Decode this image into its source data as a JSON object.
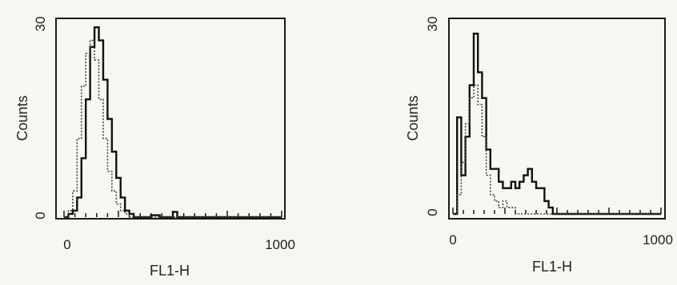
{
  "chart_data": [
    {
      "type": "line",
      "title": "",
      "xlabel": "FL1-H",
      "ylabel": "Counts",
      "xlim": [
        0,
        1000
      ],
      "ylim": [
        0,
        30
      ],
      "x_ticks": [
        "0",
        "1000"
      ],
      "y_ticks": [
        "0",
        "30"
      ],
      "grid": false,
      "series": [
        {
          "style": "solid",
          "color": "#111111",
          "x": [
            0,
            20,
            40,
            60,
            80,
            100,
            120,
            140,
            160,
            180,
            200,
            220,
            240,
            260,
            280,
            300,
            320,
            360,
            400,
            440,
            480,
            500,
            520,
            600,
            700,
            800,
            900,
            1000
          ],
          "y": [
            0,
            0.5,
            1,
            3,
            9,
            18,
            26,
            29,
            27,
            21,
            15,
            10,
            6,
            3,
            1,
            0.5,
            0,
            0,
            0.3,
            0,
            0,
            0.8,
            0,
            0,
            0,
            0,
            0,
            0
          ]
        },
        {
          "style": "dotted",
          "color": "#444444",
          "x": [
            0,
            20,
            40,
            60,
            80,
            100,
            120,
            140,
            160,
            180,
            200,
            220,
            240,
            260,
            280,
            300,
            400,
            1000
          ],
          "y": [
            0,
            1,
            4,
            12,
            20,
            25,
            27,
            24,
            18,
            12,
            7,
            4,
            2,
            1,
            0.5,
            0,
            0,
            0
          ]
        }
      ]
    },
    {
      "type": "line",
      "title": "",
      "xlabel": "FL1-H",
      "ylabel": "Counts",
      "xlim": [
        0,
        1000
      ],
      "ylim": [
        0,
        30
      ],
      "x_ticks": [
        "0",
        "1000"
      ],
      "y_ticks": [
        "0",
        "30"
      ],
      "grid": false,
      "series": [
        {
          "style": "solid",
          "color": "#111111",
          "x": [
            0,
            20,
            40,
            60,
            80,
            100,
            120,
            140,
            160,
            180,
            200,
            220,
            240,
            260,
            280,
            300,
            320,
            340,
            360,
            380,
            400,
            420,
            440,
            460,
            480,
            500,
            600,
            700,
            800,
            900,
            1000
          ],
          "y": [
            0,
            15,
            6,
            12,
            20,
            28,
            22,
            18,
            10,
            7,
            7,
            5,
            4,
            4,
            5,
            4,
            5,
            6,
            7,
            5,
            4,
            4,
            2,
            1,
            0,
            0,
            0,
            0,
            0,
            0,
            0
          ]
        },
        {
          "style": "dotted",
          "color": "#444444",
          "x": [
            0,
            20,
            40,
            60,
            80,
            100,
            120,
            140,
            160,
            180,
            200,
            220,
            240,
            260,
            300,
            400,
            1000
          ],
          "y": [
            0,
            3,
            8,
            14,
            18,
            20,
            17,
            12,
            6,
            3,
            2,
            1,
            2,
            1,
            0,
            0,
            0
          ]
        }
      ]
    }
  ]
}
